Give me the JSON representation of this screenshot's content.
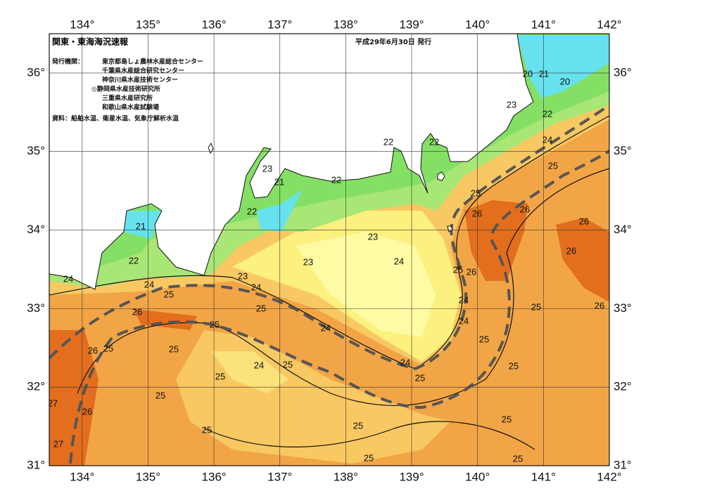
{
  "map": {
    "title": "関東・東海海況速報",
    "date": "平成29年6月30日 発行",
    "issuer_heading": "発行機関：",
    "issuers": [
      "東京都島しょ農林水産総合センター",
      "千葉県水産総合研究センター",
      "神奈川県水産技術センター",
      "◎静岡県水産技術研究所",
      "三重県水産研究所",
      "和歌山県水産試験場"
    ],
    "source": "資料：船舶水温、衛星水温、気象庁解析水温",
    "xlim": [
      133.5,
      142
    ],
    "ylim": [
      31,
      36.5
    ],
    "xticks": [
      {
        "value": 134,
        "label": "134°"
      },
      {
        "value": 135,
        "label": "135°"
      },
      {
        "value": 136,
        "label": "136°"
      },
      {
        "value": 137,
        "label": "137°"
      },
      {
        "value": 138,
        "label": "138°"
      },
      {
        "value": 139,
        "label": "139°"
      },
      {
        "value": 140,
        "label": "140°"
      },
      {
        "value": 141,
        "label": "141°"
      },
      {
        "value": 142,
        "label": "142°"
      }
    ],
    "yticks": [
      {
        "value": 31,
        "label": "31°"
      },
      {
        "value": 32,
        "label": "32°"
      },
      {
        "value": 33,
        "label": "33°"
      },
      {
        "value": 34,
        "label": "34°"
      },
      {
        "value": 35,
        "label": "35°"
      },
      {
        "value": 36,
        "label": "36°"
      }
    ],
    "contour_labels": [
      20,
      21,
      20,
      23,
      22,
      24,
      25,
      26,
      26,
      26,
      26,
      25,
      25,
      25,
      25,
      22,
      22,
      22,
      23,
      21,
      22,
      21,
      22,
      24,
      24,
      25,
      24,
      23,
      23,
      23,
      24,
      25,
      26,
      25,
      26,
      24,
      24,
      25,
      24,
      25,
      25,
      26,
      25,
      24,
      25,
      26,
      25,
      24,
      25,
      25,
      25,
      27,
      26,
      27,
      25,
      25,
      25
    ]
  }
}
